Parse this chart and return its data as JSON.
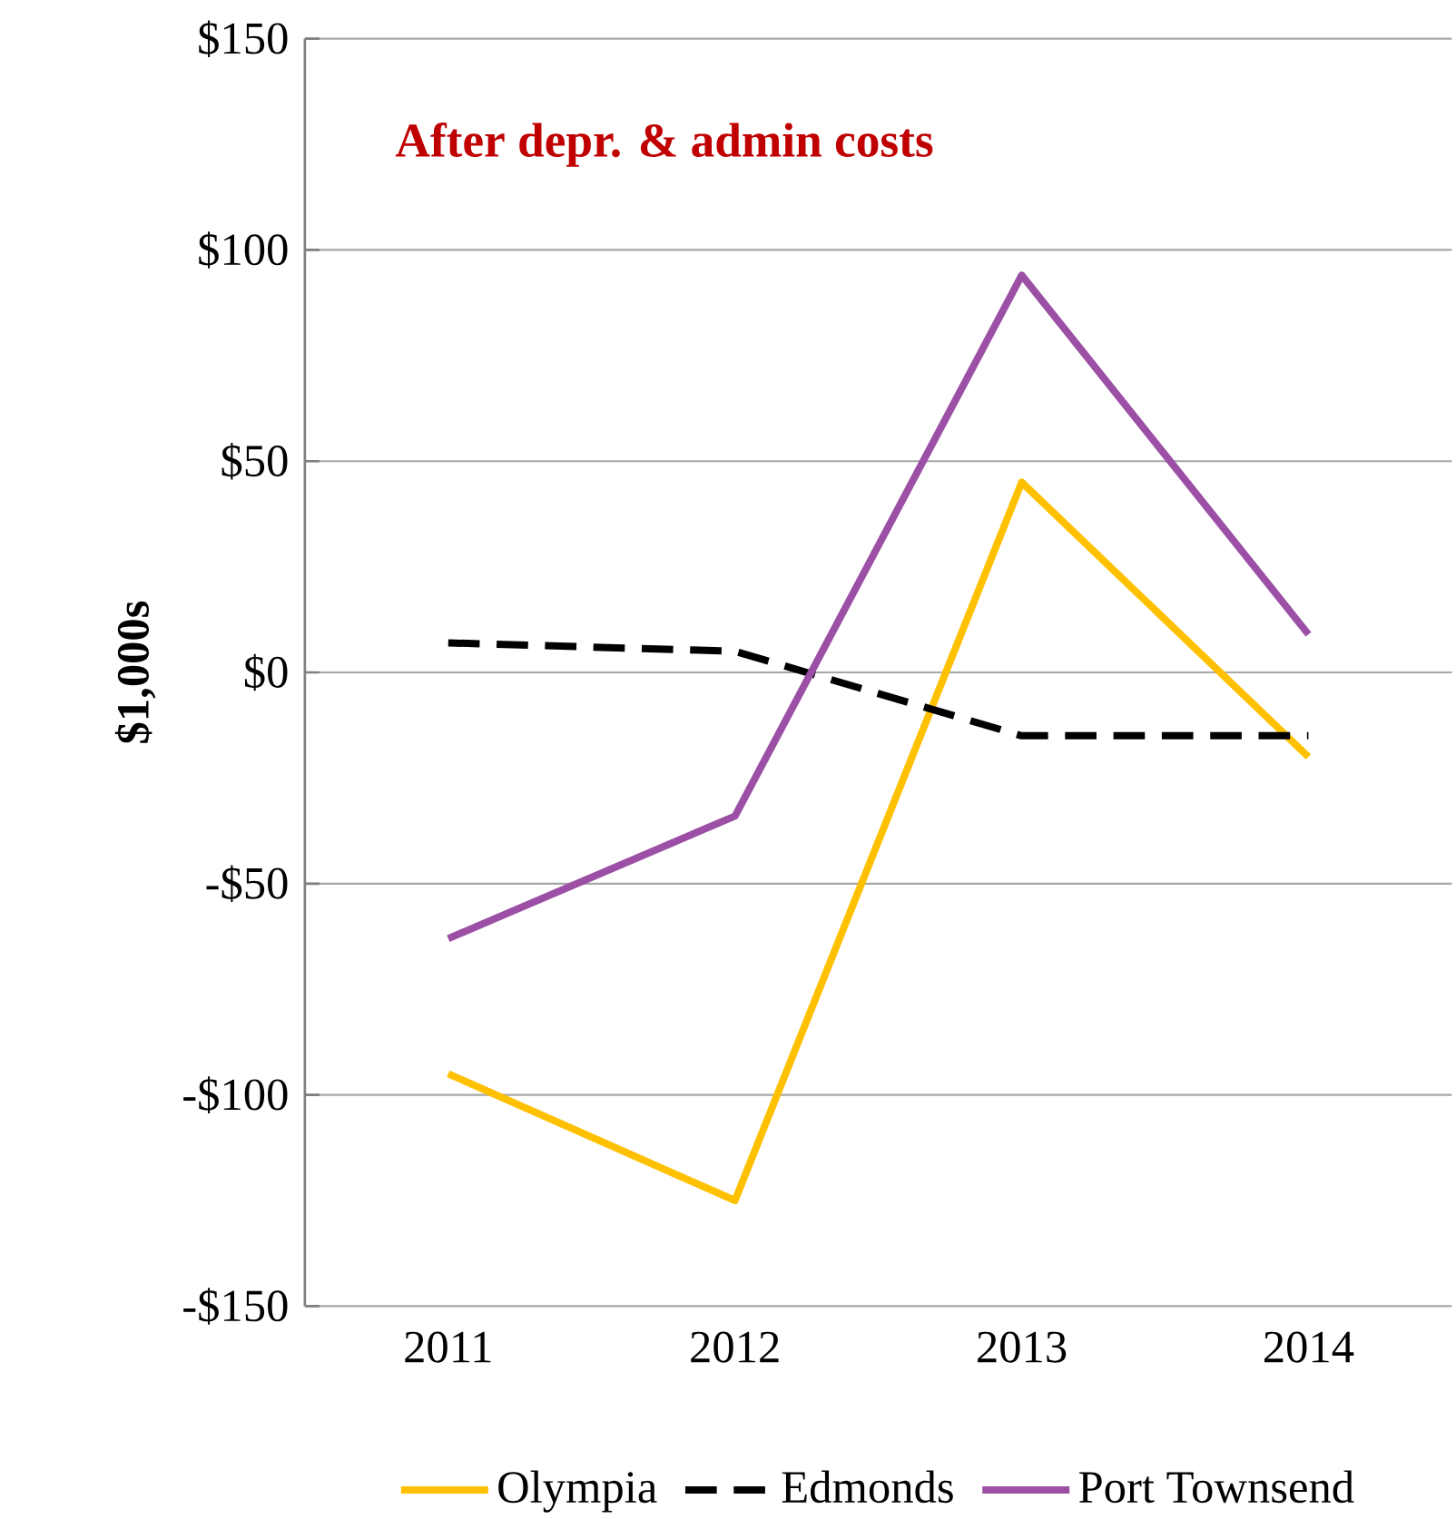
{
  "chart_data": {
    "type": "line",
    "title": "After depr. & admin costs",
    "ylabel": "$1,000s",
    "categories": [
      "2011",
      "2012",
      "2013",
      "2014"
    ],
    "series": [
      {
        "name": "Olympia",
        "color": "#ffc000",
        "values": [
          -95,
          -125,
          45,
          -20
        ],
        "line_style": "solid"
      },
      {
        "name": "Edmonds",
        "color": "#000000",
        "values": [
          7,
          5,
          -15,
          -15
        ],
        "line_style": "dashed"
      },
      {
        "name": "Port Townsend",
        "color": "#9b4fa5",
        "values": [
          -63,
          -34,
          94,
          9
        ],
        "line_style": "solid"
      }
    ],
    "ylim": [
      -150,
      150
    ],
    "yticks": [
      {
        "value": -150,
        "label": "-$150"
      },
      {
        "value": -100,
        "label": "-$100"
      },
      {
        "value": -50,
        "label": "-$50"
      },
      {
        "value": 0,
        "label": "$0"
      },
      {
        "value": 50,
        "label": "$50"
      },
      {
        "value": 100,
        "label": "$100"
      },
      {
        "value": 150,
        "label": "$150"
      }
    ],
    "grid": "y",
    "legend": "bottom",
    "marker": "none"
  }
}
